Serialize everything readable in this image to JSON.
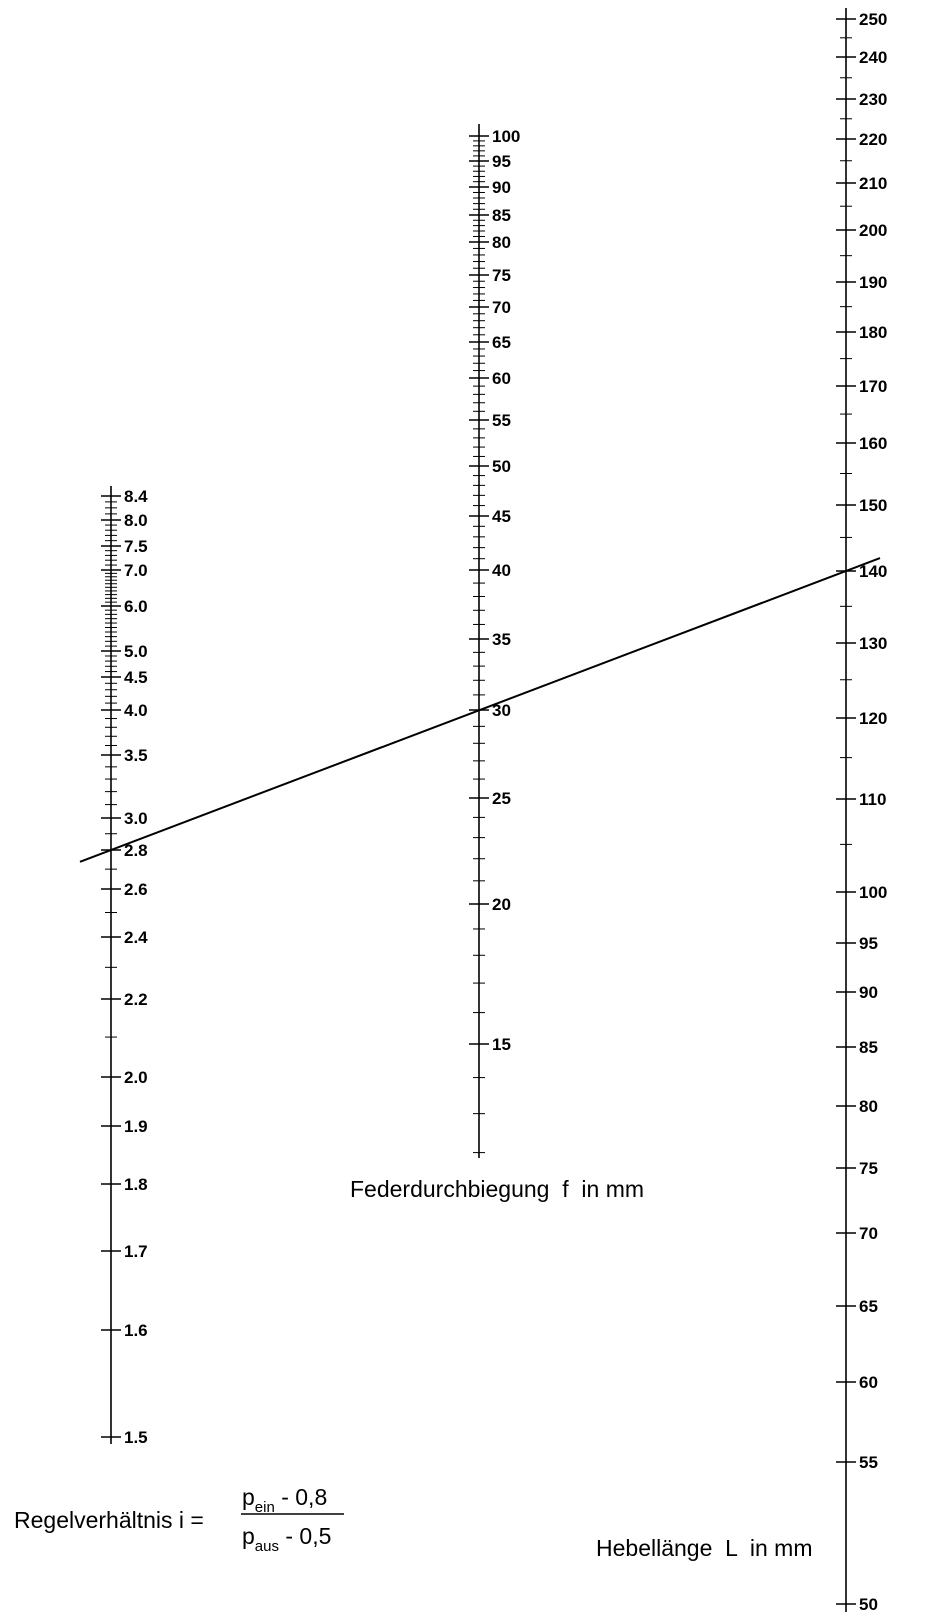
{
  "nomogram": {
    "scales": [
      {
        "id": "ratio",
        "name": "Regelverhältnis i",
        "labeled_ticks": [
          "8.4",
          "8.0",
          "7.5",
          "7.0",
          "6.0",
          "5.0",
          "4.5",
          "4.0",
          "3.5",
          "3.0",
          "2.8",
          "2.6",
          "2.4",
          "2.2",
          "2.0",
          "1.9",
          "1.8",
          "1.7",
          "1.6",
          "1.5"
        ],
        "minor_step": 0.1
      },
      {
        "id": "deflection",
        "name": "Federdurchbiegung f in mm",
        "labeled_ticks": [
          "100",
          "95",
          "90",
          "85",
          "80",
          "75",
          "70",
          "65",
          "60",
          "55",
          "50",
          "45",
          "40",
          "35",
          "30",
          "25",
          "20",
          "15"
        ],
        "minor_step": 1,
        "range": [
          12,
          100
        ]
      },
      {
        "id": "lever",
        "name": "Hebellänge L in mm",
        "labeled_ticks": [
          "250",
          "240",
          "230",
          "220",
          "210",
          "200",
          "190",
          "180",
          "170",
          "160",
          "150",
          "140",
          "130",
          "120",
          "110",
          "100",
          "95",
          "90",
          "85",
          "80",
          "75",
          "70",
          "65",
          "60",
          "55",
          "50"
        ],
        "minor_step": 5
      }
    ],
    "example_line": {
      "ratio": 2.8,
      "deflection": 30,
      "lever": 140
    }
  },
  "labels": {
    "deflection_caption": "Federdurchbiegung  f  in mm",
    "lever_caption": "Hebellänge  L  in mm",
    "ratio_prefix": "Regelverhältnis i =",
    "numerator_p": "p",
    "numerator_sub": "ein",
    "numerator_rest": " - 0,8",
    "denominator_p": "p",
    "denominator_sub": "aus",
    "denominator_rest": " - 0,5"
  }
}
